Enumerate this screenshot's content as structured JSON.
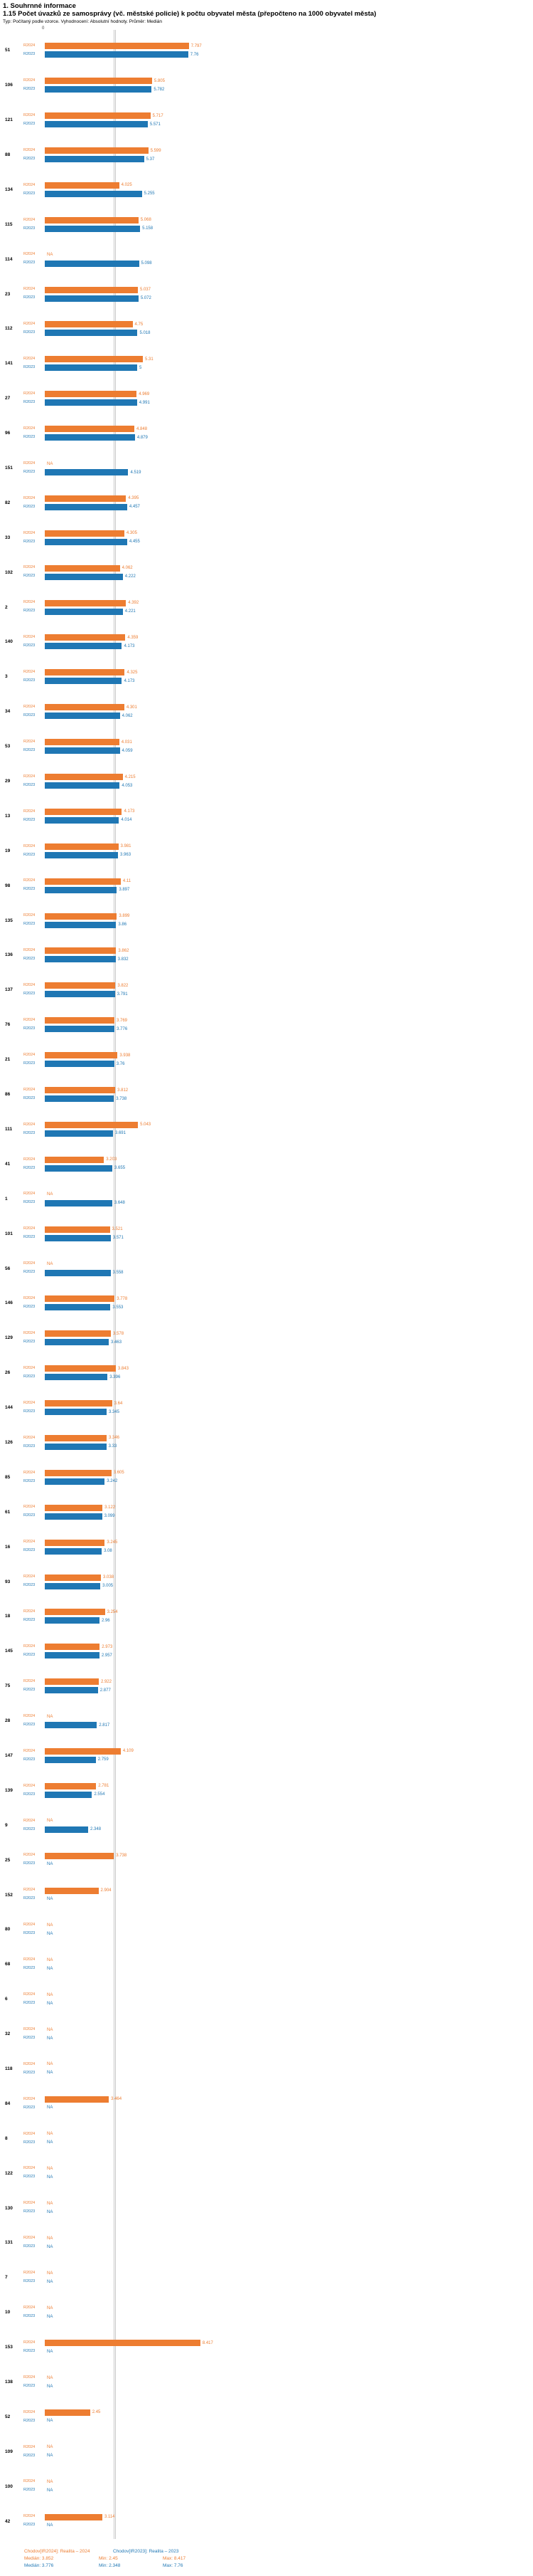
{
  "title": "1. Souhrnné informace",
  "subtitle": "1.15 Počet úvazků ze samosprávy (vč. městské policie) k počtu obyvatel města (přepočteno na 1000 obyvatel města)",
  "meta": "Typ: Počítaný podle vzorce. Vyhodnocení: Absolutní hodnoty. Průměr: Medián",
  "axis": {
    "zero_label": "0"
  },
  "colors": {
    "y2024": "#ED7D31",
    "y2023": "#1F77B4",
    "median_line": "#c9c9c9"
  },
  "legend": {
    "s2024": {
      "label": "Chodov[IR2024]: Realita – 2024",
      "median": "Medián: 3.852",
      "min": "Min: 2.45",
      "max": "Max: 8.417"
    },
    "s2023": {
      "label": "Chodov[IR2023]: Realita – 2023",
      "median": "Medián: 3.776",
      "min": "Min: 2.348",
      "max": "Max: 7.76"
    }
  },
  "chart_data": {
    "type": "bar",
    "orientation": "horizontal",
    "title": "1.15 Počet úvazků ze samosprávy (vč. městské policie) k počtu obyvatel města (přepočteno na 1000 obyvatel města)",
    "xlabel": "",
    "ylabel": "",
    "xlim": [
      0,
      8.5
    ],
    "grid": false,
    "legend_position": "bottom",
    "series_labels": {
      "r2024": "R2024",
      "r2023": "R2023"
    },
    "median_2024": 3.852,
    "median_2023": 3.776,
    "stats": {
      "r2024": {
        "median": 3.852,
        "min": 2.45,
        "max": 8.417
      },
      "r2023": {
        "median": 3.776,
        "min": 2.348,
        "max": 7.76
      }
    },
    "rows": [
      {
        "id": "51",
        "r2024": 7.797,
        "r2023": 7.76
      },
      {
        "id": "106",
        "r2024": 5.805,
        "r2023": 5.782
      },
      {
        "id": "121",
        "r2024": 5.717,
        "r2023": 5.571
      },
      {
        "id": "88",
        "r2024": 5.599,
        "r2023": 5.37
      },
      {
        "id": "134",
        "r2024": 4.025,
        "r2023": 5.255
      },
      {
        "id": "115",
        "r2024": 5.068,
        "r2023": 5.158
      },
      {
        "id": "114",
        "r2024": null,
        "r2023": 5.098
      },
      {
        "id": "23",
        "r2024": 5.037,
        "r2023": 5.072
      },
      {
        "id": "112",
        "r2024": 4.75,
        "r2023": 5.018
      },
      {
        "id": "141",
        "r2024": 5.31,
        "r2023": 5
      },
      {
        "id": "27",
        "r2024": 4.969,
        "r2023": 4.991
      },
      {
        "id": "96",
        "r2024": 4.848,
        "r2023": 4.879
      },
      {
        "id": "151",
        "r2024": null,
        "r2023": 4.519
      },
      {
        "id": "82",
        "r2024": 4.395,
        "r2023": 4.457
      },
      {
        "id": "33",
        "r2024": 4.305,
        "r2023": 4.455
      },
      {
        "id": "102",
        "r2024": 4.062,
        "r2023": 4.222
      },
      {
        "id": "2",
        "r2024": 4.392,
        "r2023": 4.221
      },
      {
        "id": "140",
        "r2024": 4.359,
        "r2023": 4.173
      },
      {
        "id": "3",
        "r2024": 4.325,
        "r2023": 4.173
      },
      {
        "id": "34",
        "r2024": 4.301,
        "r2023": 4.062
      },
      {
        "id": "53",
        "r2024": 4.031,
        "r2023": 4.059
      },
      {
        "id": "29",
        "r2024": 4.215,
        "r2023": 4.053
      },
      {
        "id": "13",
        "r2024": 4.173,
        "r2023": 4.014
      },
      {
        "id": "19",
        "r2024": 3.981,
        "r2023": 3.963
      },
      {
        "id": "98",
        "r2024": 4.11,
        "r2023": 3.897
      },
      {
        "id": "135",
        "r2024": 3.899,
        "r2023": 3.86
      },
      {
        "id": "136",
        "r2024": 3.862,
        "r2023": 3.832
      },
      {
        "id": "137",
        "r2024": 3.822,
        "r2023": 3.791
      },
      {
        "id": "76",
        "r2024": 3.769,
        "r2023": 3.776
      },
      {
        "id": "21",
        "r2024": 3.938,
        "r2023": 3.76
      },
      {
        "id": "86",
        "r2024": 3.812,
        "r2023": 3.738
      },
      {
        "id": "111",
        "r2024": 5.043,
        "r2023": 3.691
      },
      {
        "id": "41",
        "r2024": 3.203,
        "r2023": 3.655
      },
      {
        "id": "1",
        "r2024": null,
        "r2023": 3.648
      },
      {
        "id": "101",
        "r2024": 3.521,
        "r2023": 3.571
      },
      {
        "id": "56",
        "r2024": null,
        "r2023": 3.558
      },
      {
        "id": "146",
        "r2024": 3.778,
        "r2023": 3.553
      },
      {
        "id": "129",
        "r2024": 3.578,
        "r2023": 3.463
      },
      {
        "id": "26",
        "r2024": 3.843,
        "r2023": 3.396
      },
      {
        "id": "144",
        "r2024": 3.64,
        "r2023": 3.345
      },
      {
        "id": "126",
        "r2024": 3.346,
        "r2023": 3.33
      },
      {
        "id": "85",
        "r2024": 3.605,
        "r2023": 3.242
      },
      {
        "id": "61",
        "r2024": 3.122,
        "r2023": 3.099
      },
      {
        "id": "16",
        "r2024": 3.245,
        "r2023": 3.08
      },
      {
        "id": "93",
        "r2024": 3.038,
        "r2023": 3.005
      },
      {
        "id": "18",
        "r2024": 3.254,
        "r2023": 2.96
      },
      {
        "id": "145",
        "r2024": 2.973,
        "r2023": 2.957
      },
      {
        "id": "75",
        "r2024": 2.922,
        "r2023": 2.877
      },
      {
        "id": "28",
        "r2024": null,
        "r2023": 2.817
      },
      {
        "id": "147",
        "r2024": 4.109,
        "r2023": 2.759
      },
      {
        "id": "139",
        "r2024": 2.781,
        "r2023": 2.554
      },
      {
        "id": "9",
        "r2024": null,
        "r2023": 2.348
      },
      {
        "id": "25",
        "r2024": 3.738,
        "r2023": null
      },
      {
        "id": "152",
        "r2024": 2.904,
        "r2023": null
      },
      {
        "id": "80",
        "r2024": null,
        "r2023": null
      },
      {
        "id": "68",
        "r2024": null,
        "r2023": null
      },
      {
        "id": "6",
        "r2024": null,
        "r2023": null
      },
      {
        "id": "32",
        "r2024": null,
        "r2023": null
      },
      {
        "id": "118",
        "r2024": null,
        "r2023": null
      },
      {
        "id": "84",
        "r2024": 3.464,
        "r2023": null
      },
      {
        "id": "8",
        "r2024": null,
        "r2023": null
      },
      {
        "id": "122",
        "r2024": null,
        "r2023": null
      },
      {
        "id": "130",
        "r2024": null,
        "r2023": null
      },
      {
        "id": "131",
        "r2024": null,
        "r2023": null
      },
      {
        "id": "7",
        "r2024": null,
        "r2023": null
      },
      {
        "id": "10",
        "r2024": null,
        "r2023": null
      },
      {
        "id": "153",
        "r2024": 8.417,
        "r2023": null
      },
      {
        "id": "138",
        "r2024": null,
        "r2023": null
      },
      {
        "id": "52",
        "r2024": 2.45,
        "r2023": null
      },
      {
        "id": "109",
        "r2024": null,
        "r2023": null
      },
      {
        "id": "100",
        "r2024": null,
        "r2023": null
      },
      {
        "id": "42",
        "r2024": 3.114,
        "r2023": null
      }
    ]
  }
}
